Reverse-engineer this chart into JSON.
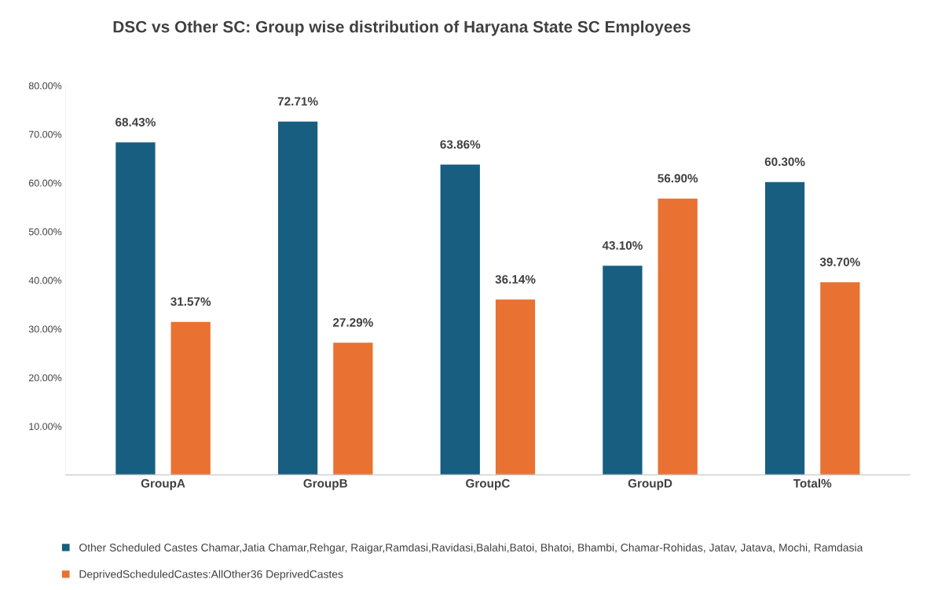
{
  "chart_data": {
    "type": "bar",
    "title": "DSC vs Other SC: Group wise distribution of Haryana State SC Employees",
    "categories": [
      "GroupA",
      "GroupB",
      "GroupC",
      "GroupD",
      "Total%"
    ],
    "series": [
      {
        "name": "Other Scheduled Castes Chamar,Jatia Chamar,Rehgar, Raigar,Ramdasi,Ravidasi,Balahi,Batoi, Bhatoi, Bhambi, Chamar-Rohidas, Jatav, Jatava, Mochi, Ramdasia",
        "color": "#175e81",
        "values": [
          68.43,
          72.71,
          63.86,
          43.1,
          60.3
        ],
        "value_labels": [
          "68.43%",
          "72.71%",
          "63.86%",
          "43.10%",
          "60.30%"
        ]
      },
      {
        "name": "DeprivedScheduledCastes:AllOther36 DeprivedCastes",
        "color": "#e97132",
        "values": [
          31.57,
          27.29,
          36.14,
          56.9,
          39.7
        ],
        "value_labels": [
          "31.57%",
          "27.29%",
          "36.14%",
          "56.90%",
          "39.70%"
        ]
      }
    ],
    "ylim": [
      0,
      80
    ],
    "yticks": [
      {
        "value": 10,
        "label": "10.00%"
      },
      {
        "value": 20,
        "label": "20.00%"
      },
      {
        "value": 30,
        "label": "30.00%"
      },
      {
        "value": 40,
        "label": "40.00%"
      },
      {
        "value": 50,
        "label": "50.00%"
      },
      {
        "value": 60,
        "label": "60.00%"
      },
      {
        "value": 70,
        "label": "70.00%"
      },
      {
        "value": 80,
        "label": "80.00%"
      }
    ],
    "grid": false,
    "legend": "bottom"
  }
}
